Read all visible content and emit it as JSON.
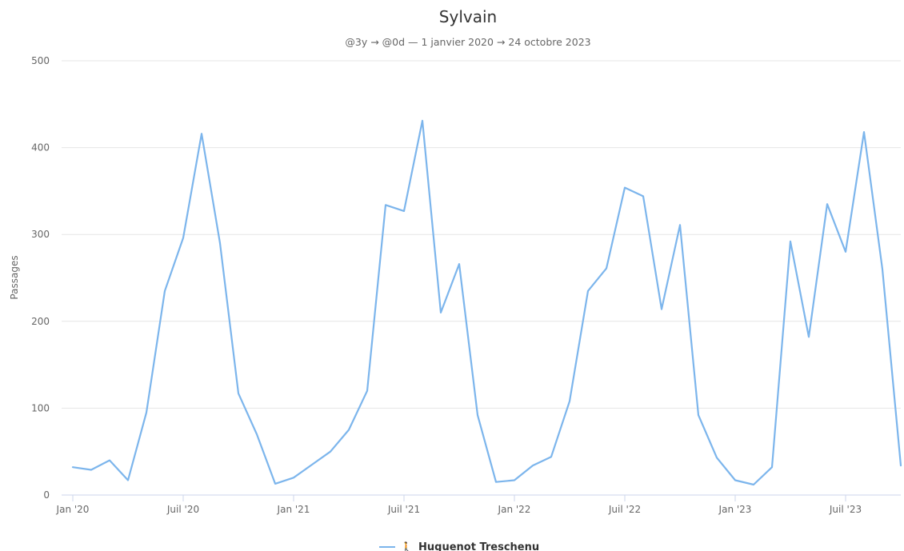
{
  "chart_data": {
    "type": "line",
    "title": "Sylvain",
    "subtitle": "@3y → @0d  —  1 janvier 2020 → 24 octobre 2023",
    "ylabel": "Passages",
    "xlabel": "",
    "ylim": [
      0,
      500
    ],
    "yticks": [
      0,
      100,
      200,
      300,
      400,
      500
    ],
    "x_ticks": [
      {
        "label": "Jan '20",
        "date": "2020-01"
      },
      {
        "label": "Juil '20",
        "date": "2020-07"
      },
      {
        "label": "Jan '21",
        "date": "2021-01"
      },
      {
        "label": "Juil '21",
        "date": "2021-07"
      },
      {
        "label": "Jan '22",
        "date": "2022-01"
      },
      {
        "label": "Juil '22",
        "date": "2022-07"
      },
      {
        "label": "Jan '23",
        "date": "2023-01"
      },
      {
        "label": "Juil '23",
        "date": "2023-07"
      }
    ],
    "grid": true,
    "legend_position": "bottom-center",
    "series": [
      {
        "name": "Huguenot Treschenu",
        "icon": "walker-icon",
        "color": "#7cb5ec",
        "x": [
          "2020-01",
          "2020-02",
          "2020-03",
          "2020-04",
          "2020-05",
          "2020-06",
          "2020-07",
          "2020-08",
          "2020-09",
          "2020-10",
          "2020-11",
          "2020-12",
          "2021-01",
          "2021-02",
          "2021-03",
          "2021-04",
          "2021-05",
          "2021-06",
          "2021-07",
          "2021-08",
          "2021-09",
          "2021-10",
          "2021-11",
          "2021-12",
          "2022-01",
          "2022-02",
          "2022-03",
          "2022-04",
          "2022-05",
          "2022-06",
          "2022-07",
          "2022-08",
          "2022-09",
          "2022-10",
          "2022-11",
          "2022-12",
          "2023-01",
          "2023-02",
          "2023-03",
          "2023-04",
          "2023-05",
          "2023-06",
          "2023-07",
          "2023-08",
          "2023-09",
          "2023-10"
        ],
        "values": [
          32,
          29,
          40,
          17,
          95,
          235,
          296,
          416,
          290,
          117,
          70,
          13,
          20,
          35,
          50,
          75,
          120,
          334,
          327,
          431,
          210,
          266,
          92,
          15,
          17,
          34,
          44,
          108,
          235,
          261,
          354,
          344,
          214,
          311,
          92,
          43,
          17,
          12,
          32,
          292,
          182,
          335,
          280,
          418,
          260,
          34
        ]
      }
    ]
  }
}
